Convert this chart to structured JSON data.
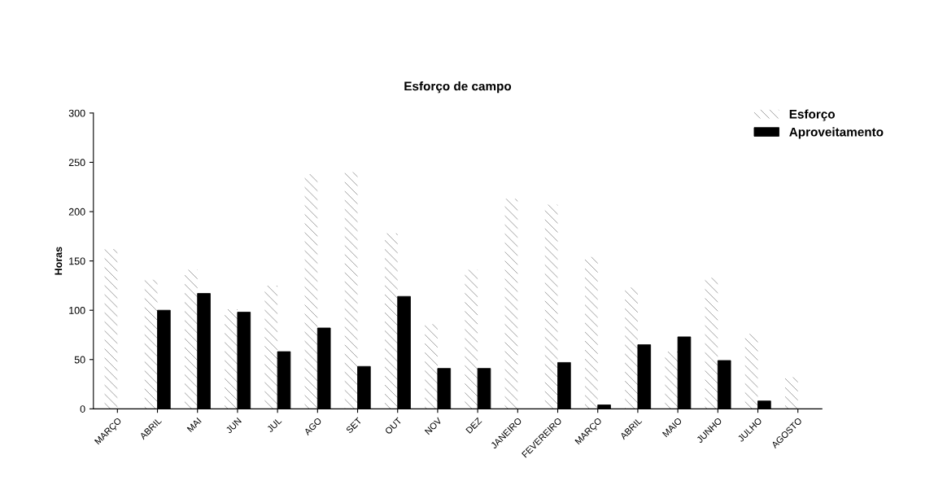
{
  "chart_data": {
    "type": "bar",
    "title": "Esforço de campo",
    "ylabel": "Horas",
    "categories": [
      "MARÇO",
      "ABRIL",
      "MAI",
      "JUN",
      "JUL",
      "AGO",
      "SET",
      "OUT",
      "NOV",
      "DEZ",
      "JANEIRO",
      "FEVEREIRO",
      "MARÇO",
      "ABRIL",
      "MAIO",
      "JUNHO",
      "JULHO",
      "AGOSTO"
    ],
    "series": [
      {
        "name": "Esforço",
        "color": "#ffffff",
        "values": [
          162,
          131,
          141,
          101,
          125,
          238,
          240,
          178,
          86,
          141,
          213,
          207,
          154,
          123,
          58,
          133,
          76,
          32
        ]
      },
      {
        "name": "Aproveitamento",
        "color": "#000000",
        "values": [
          null,
          100,
          117,
          98,
          58,
          82,
          43,
          114,
          41,
          41,
          null,
          47,
          4,
          65,
          73,
          49,
          8,
          null
        ]
      }
    ],
    "ylim": [
      0,
      300
    ],
    "yticks": [
      0,
      50,
      100,
      150,
      200,
      250,
      300
    ],
    "grid": false,
    "legend": "top right"
  }
}
